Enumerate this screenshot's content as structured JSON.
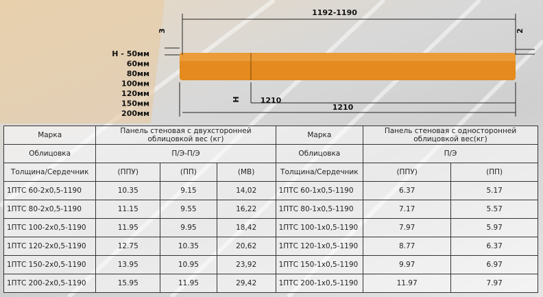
{
  "diagram": {
    "width_top": "1192-1190",
    "offset_left": "3",
    "offset_right": "2",
    "thicknesses": [
      "H - 50мм",
      "60мм",
      "80мм",
      "100мм",
      "120мм",
      "150мм",
      "200мм"
    ],
    "height_label": "H",
    "inner_length": "1210",
    "full_length": "1210"
  },
  "table": {
    "header": [
      [
        "Марка",
        "Панель стеновая с двухсторонней облицовкой вес (кг)",
        "Марка",
        "Панель стеновая с односторонней облицовкой вес(кг)"
      ],
      [
        "Облицовка",
        "П/Э-П/Э",
        "Облицовка",
        "П/Э"
      ],
      [
        "Толщина/Сердечник",
        "(ППУ)",
        "(ПП)",
        "(МВ)",
        "Толщина/Сердечник",
        "(ППУ)",
        "(ПП)"
      ]
    ],
    "rows": [
      [
        "1ПТС 60-2х0,5-1190",
        "10.35",
        "9.15",
        "14,02",
        "1ПТС 60-1х0,5-1190",
        "6.37",
        "5.17"
      ],
      [
        "1ПТС 80-2х0,5-1190",
        "11.15",
        "9.55",
        "16,22",
        "1ПТС 80-1х0,5-1190",
        "7.17",
        "5.57"
      ],
      [
        "1ПТС 100-2х0,5-1190",
        "11.95",
        "9.95",
        "18,42",
        "1ПТС 100-1х0,5-1190",
        "7.97",
        "5.97"
      ],
      [
        "1ПТС 120-2х0,5-1190",
        "12.75",
        "10.35",
        "20,62",
        "1ПТС 120-1х0,5-1190",
        "8.77",
        "6.37"
      ],
      [
        "1ПТС 150-2х0,5-1190",
        "13.95",
        "10.95",
        "23,92",
        "1ПТС 150-1х0,5-1190",
        "9.97",
        "6.97"
      ],
      [
        "1ПТС 200-2х0,5-1190",
        "15.95",
        "11.95",
        "29,42",
        "1ПТС 200-1х0,5-1190",
        "11.97",
        "7.97"
      ]
    ]
  }
}
